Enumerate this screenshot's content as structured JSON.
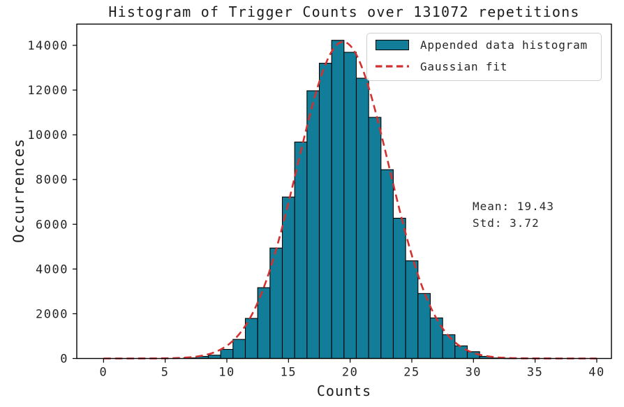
{
  "title": "Histogram of Trigger Counts over 131072 repetitions",
  "axes": {
    "xlabel": "Counts",
    "ylabel": "Occurrences"
  },
  "legend": {
    "items": [
      {
        "label": "Appended data histogram",
        "marker": "filled-box"
      },
      {
        "label": "Gaussian fit",
        "marker": "dashed-line"
      }
    ]
  },
  "annotation": {
    "lines": [
      "Mean: 19.43",
      "Std: 3.72"
    ]
  },
  "colors": {
    "histogram_fill": "#117d98",
    "bar_edge": "#000000",
    "gaussian_line": "#d3312f",
    "axis": "#000000",
    "text": "#262626",
    "legend_border": "#cfcfcf",
    "background": "#ffffff"
  },
  "chart_data": {
    "type": "bar",
    "title": "Histogram of Trigger Counts over 131072 repetitions",
    "xlabel": "Counts",
    "ylabel": "Occurrences",
    "bin_width": 1,
    "bin_centers": [
      7,
      8,
      9,
      10,
      11,
      12,
      13,
      14,
      15,
      16,
      17,
      18,
      19,
      20,
      21,
      22,
      23,
      24,
      25,
      26,
      27,
      28,
      29,
      30,
      31,
      32,
      33
    ],
    "values": [
      25,
      94,
      147,
      406,
      853,
      1791,
      3166,
      4938,
      7219,
      9678,
      11969,
      13200,
      14225,
      13688,
      12530,
      10780,
      8440,
      6272,
      4366,
      2906,
      1813,
      1063,
      563,
      303,
      94,
      22,
      10
    ],
    "series": [
      {
        "name": "Appended data histogram",
        "type": "histogram"
      },
      {
        "name": "Gaussian fit",
        "type": "gaussian-curve",
        "mean": 19.43,
        "std": 3.72,
        "amplitude": 14160,
        "x_range": [
          0,
          40
        ]
      }
    ],
    "stats": {
      "repetitions": 131072,
      "mean": 19.43,
      "std": 3.72
    },
    "x_ticks": [
      0,
      5,
      10,
      15,
      20,
      25,
      30,
      35,
      40
    ],
    "y_ticks": [
      0,
      2000,
      4000,
      6000,
      8000,
      10000,
      12000,
      14000
    ],
    "xlim": [
      -2.17,
      41.19
    ],
    "ylim": [
      0,
      14950
    ],
    "grid": false,
    "legend_position": "upper-right"
  }
}
